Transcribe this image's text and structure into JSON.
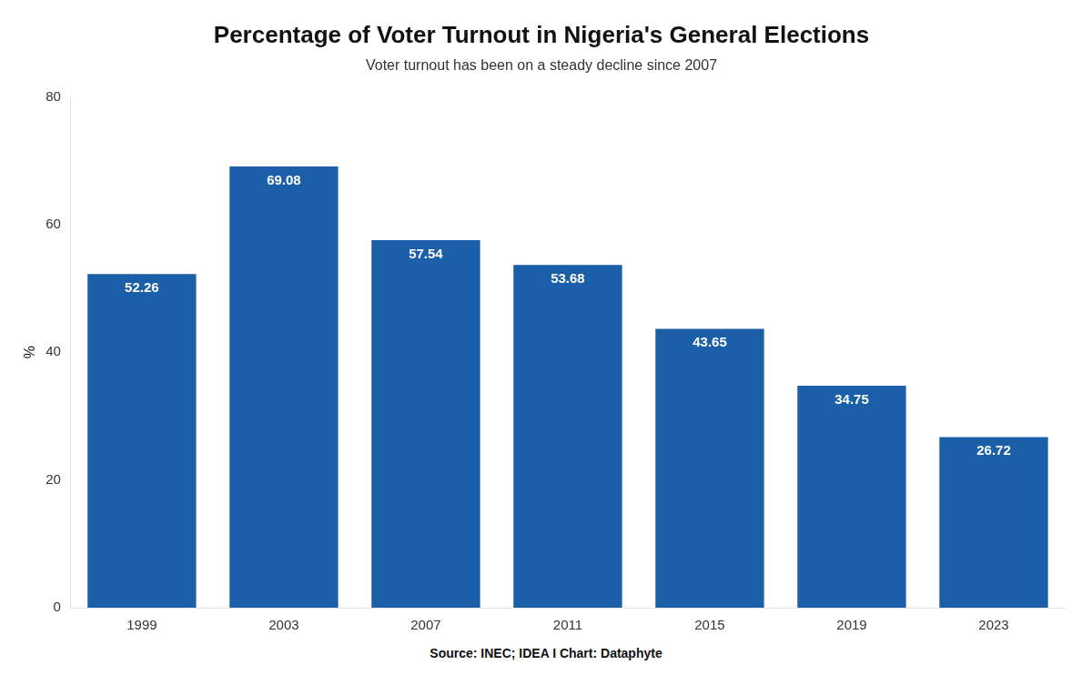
{
  "chart_data": {
    "type": "bar",
    "title": "Percentage of Voter Turnout in Nigeria's General Elections",
    "subtitle": "Voter turnout has been on a steady decline since 2007",
    "annotations": [
      "Source: INEC; IDEA I Chart: Dataphyte"
    ],
    "categories": [
      "1999",
      "2003",
      "2007",
      "2011",
      "2015",
      "2019",
      "2023"
    ],
    "values": [
      52.26,
      69.08,
      57.54,
      53.68,
      43.65,
      34.75,
      26.72
    ],
    "color": "#1a5fa8",
    "ylabel": "%",
    "ylim": [
      0,
      80
    ],
    "yticks": [
      0,
      20,
      40,
      60,
      80
    ],
    "grid": false,
    "data_labels": true
  }
}
